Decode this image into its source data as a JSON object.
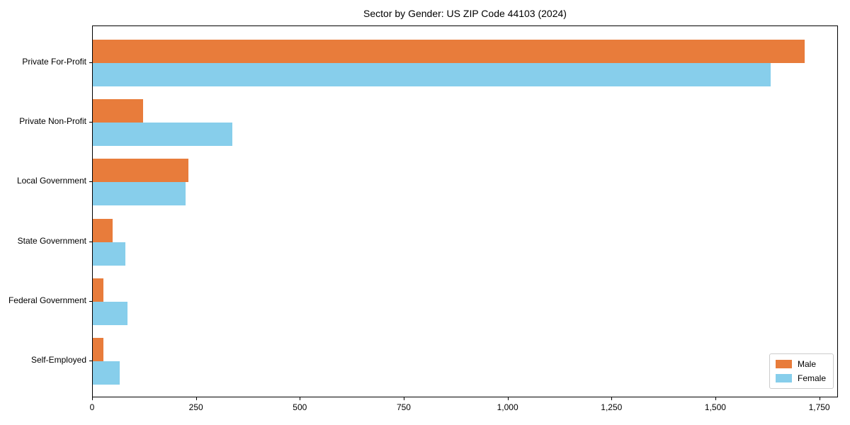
{
  "title": "Sector by Gender: US ZIP Code 44103 (2024)",
  "colors": {
    "male": "#e87c3b",
    "female": "#87ceeb",
    "spine": "#000000",
    "text": "#000000",
    "legend_border": "#cccccc",
    "background": "#ffffff"
  },
  "legend": {
    "position": "lower right",
    "entries": [
      {
        "label": "Male",
        "color": "#e87c3b"
      },
      {
        "label": "Female",
        "color": "#87ceeb"
      }
    ]
  },
  "chart_data": {
    "type": "bar",
    "orientation": "horizontal",
    "title": "Sector by Gender: US ZIP Code 44103 (2024)",
    "xlabel": "",
    "ylabel": "",
    "categories": [
      "Private For-Profit",
      "Private Non-Profit",
      "Local Government",
      "State Government",
      "Federal Government",
      "Self-Employed"
    ],
    "series": [
      {
        "name": "Male",
        "color": "#e87c3b",
        "values": [
          1713,
          121,
          230,
          48,
          26,
          25
        ]
      },
      {
        "name": "Female",
        "color": "#87ceeb",
        "values": [
          1631,
          336,
          224,
          78,
          84,
          64
        ]
      }
    ],
    "xlim": [
      0,
      1795
    ],
    "x_ticks": [
      0,
      250,
      500,
      750,
      1000,
      1250,
      1500,
      1750
    ],
    "x_tick_labels": [
      "0",
      "250",
      "500",
      "750",
      "1,000",
      "1,250",
      "1,500",
      "1,750"
    ],
    "grid": false,
    "legend_position": "lower right"
  }
}
